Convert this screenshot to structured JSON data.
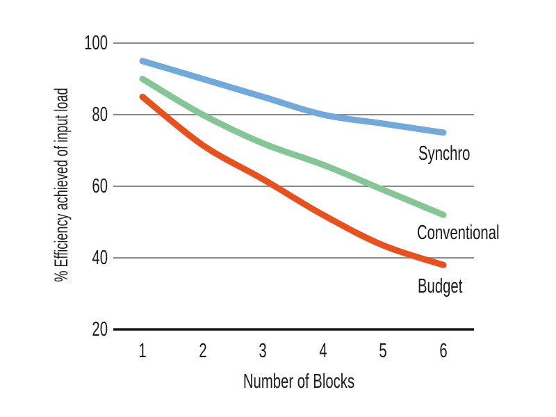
{
  "chart_data": {
    "type": "line",
    "title": "",
    "xlabel": "Number of Blocks",
    "ylabel": "% Efficiency achieved of input load",
    "x": [
      1,
      2,
      3,
      4,
      5,
      6
    ],
    "xtick_labels": [
      "1",
      "2",
      "3",
      "4",
      "5",
      "6"
    ],
    "yticks": [
      100,
      80,
      60,
      40,
      20
    ],
    "ytick_labels": [
      "100",
      "80",
      "60",
      "40",
      "20"
    ],
    "xlim": [
      1,
      6
    ],
    "ylim": [
      20,
      100
    ],
    "grid": "horizontal gridlines at 40/60/80/100; black baseline at 20",
    "legend_position": "inline labels right of line ends",
    "series": [
      {
        "name": "Synchro",
        "color": "#72A9DB",
        "values": [
          95,
          90,
          85,
          80,
          77.5,
          75
        ]
      },
      {
        "name": "Conventional",
        "color": "#84C795",
        "values": [
          90,
          80,
          72,
          66,
          59,
          52
        ]
      },
      {
        "name": "Budget",
        "color": "#E8511D",
        "values": [
          85,
          71.5,
          62,
          52,
          43.5,
          38
        ]
      }
    ],
    "colors": {
      "gridline": "#8A8A8A",
      "axis": "#1A1A1A",
      "text": "#1A1A1A",
      "background": "#FFFFFF"
    }
  }
}
